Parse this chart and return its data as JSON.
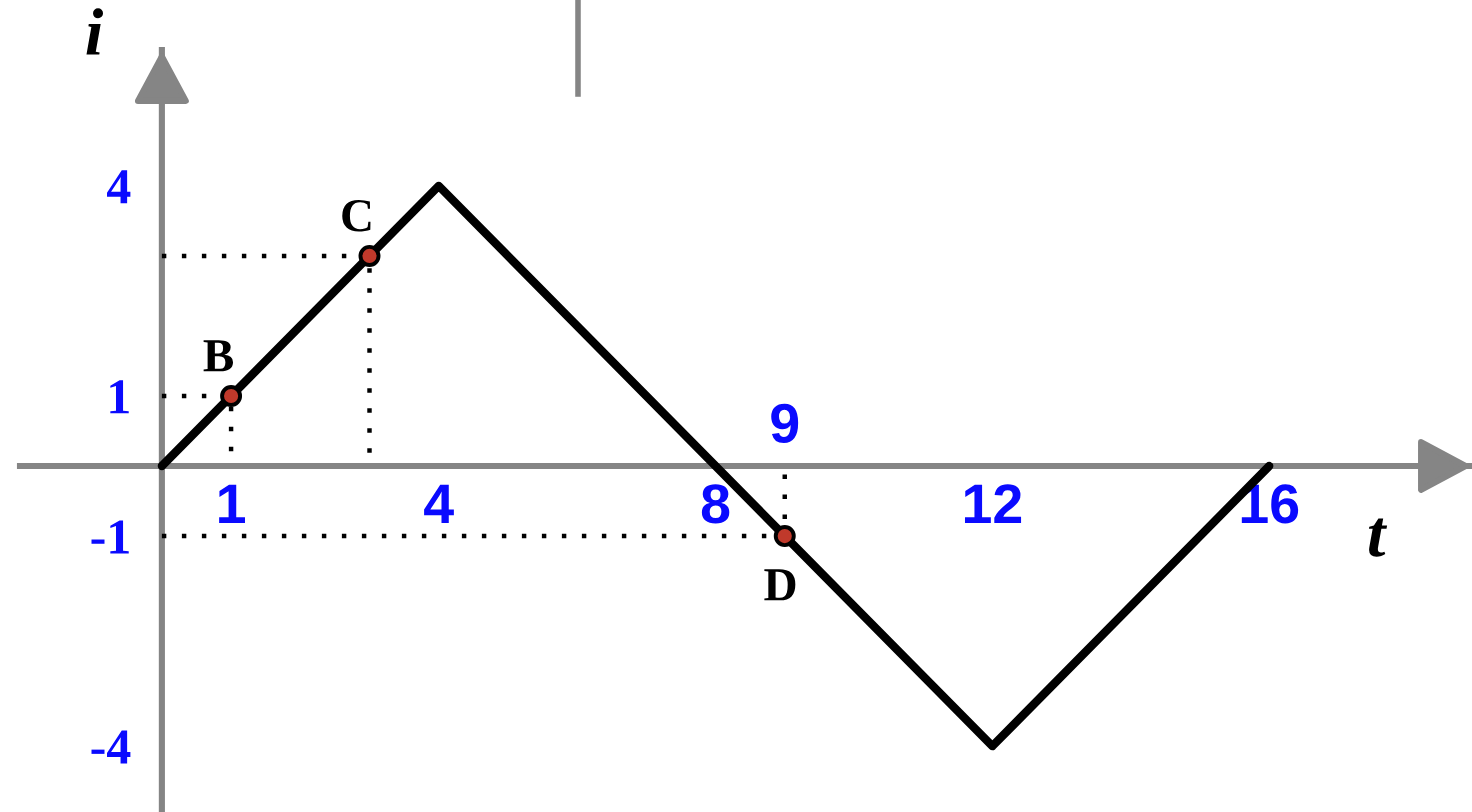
{
  "chart_data": {
    "type": "line",
    "xlabel": "t",
    "ylabel": "i",
    "xlim": [
      -2.05,
      18.93
    ],
    "ylim": [
      -4.94,
      5.94
    ],
    "xticks": [
      1,
      4,
      8,
      12,
      16
    ],
    "yticks": [
      -4,
      -1,
      1,
      4
    ],
    "grid": false,
    "series": [
      {
        "x": [
          0,
          3,
          3
        ],
        "values": [
          3,
          3,
          0
        ],
        "color": "#000000",
        "line_style": "dotted",
        "marker": "none"
      },
      {
        "x": [
          0,
          1,
          1
        ],
        "values": [
          1,
          1,
          0
        ],
        "color": "#000000",
        "line_style": "dotted",
        "marker": "none"
      },
      {
        "x": [
          0,
          9,
          9
        ],
        "values": [
          -1,
          -1,
          0
        ],
        "color": "#000000",
        "line_style": "dotted",
        "marker": "none"
      },
      {
        "x": [
          0,
          4,
          12,
          16
        ],
        "values": [
          0,
          4,
          -4,
          0
        ],
        "color": "#000000",
        "line_style": "solid",
        "marker": "none"
      },
      {
        "type": "scatter",
        "x": [
          1,
          3,
          9
        ],
        "values": [
          1,
          3,
          -1
        ],
        "color": "#c0392b",
        "marker": "circle"
      }
    ],
    "annotations": [
      {
        "text": "B",
        "x": 1,
        "y": 1
      },
      {
        "text": "C",
        "x": 3,
        "y": 3
      },
      {
        "text": "D",
        "x": 9,
        "y": -1
      },
      {
        "text": "9",
        "x": 9,
        "y": 0
      }
    ]
  }
}
